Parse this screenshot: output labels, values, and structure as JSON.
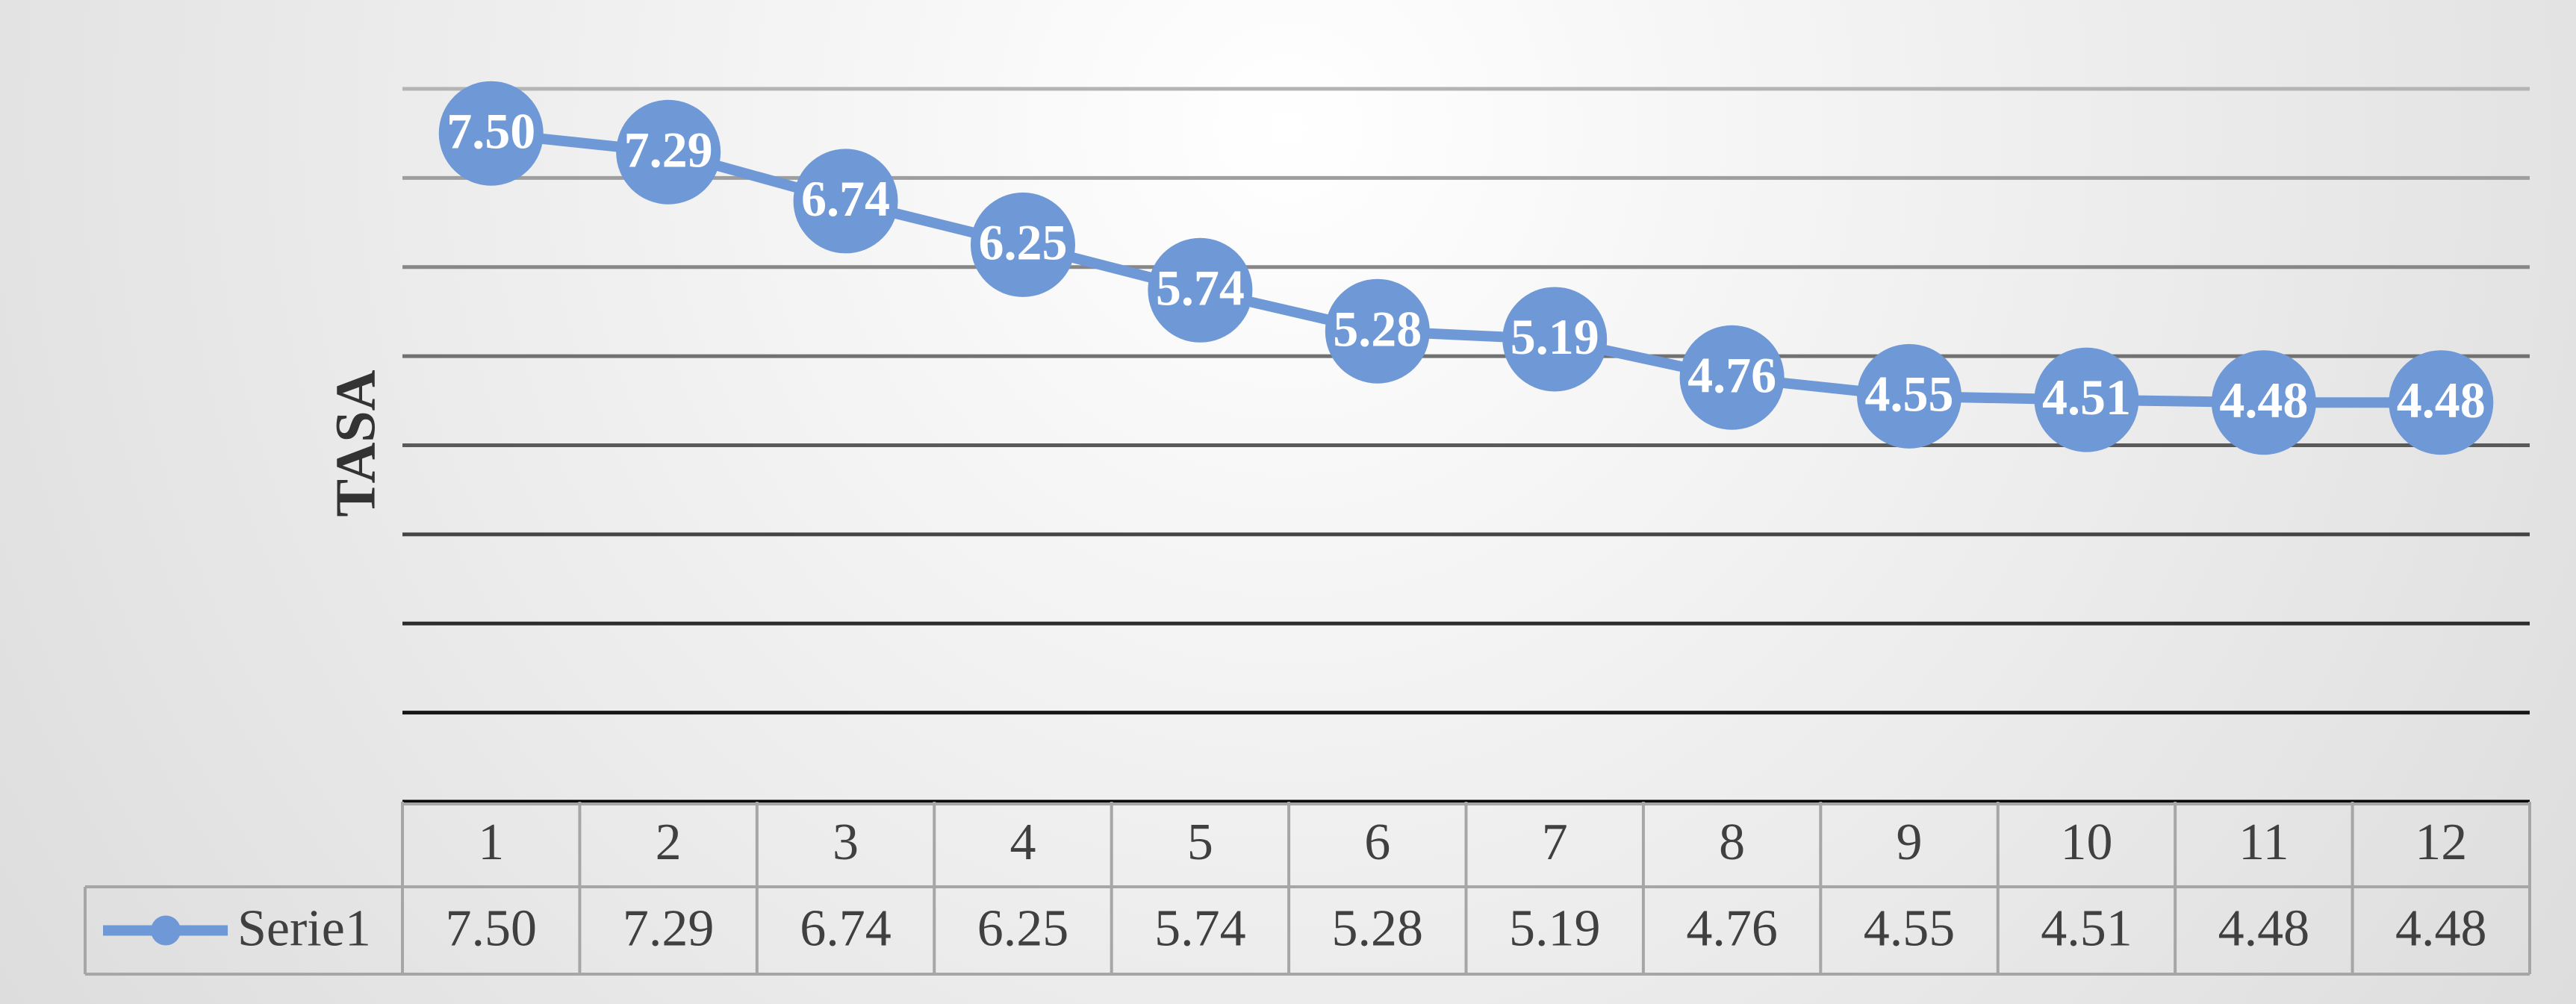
{
  "chart_data": {
    "type": "line",
    "y_label": "TASA",
    "categories": [
      "1",
      "2",
      "3",
      "4",
      "5",
      "6",
      "7",
      "8",
      "9",
      "10",
      "11",
      "12"
    ],
    "series": [
      {
        "name": "Serie1",
        "color": "#6f98d6",
        "values": [
          7.5,
          7.29,
          6.74,
          6.25,
          5.74,
          5.28,
          5.19,
          4.76,
          4.55,
          4.51,
          4.48,
          4.48
        ],
        "value_labels": [
          "7.50",
          "7.29",
          "6.74",
          "6.25",
          "5.74",
          "5.28",
          "5.19",
          "4.76",
          "4.55",
          "4.51",
          "4.48",
          "4.48"
        ]
      }
    ],
    "ylim": [
      0,
      8
    ],
    "yticks": [
      0,
      1,
      2,
      3,
      4,
      5,
      6,
      7,
      8
    ],
    "grid": true,
    "data_table": true
  }
}
